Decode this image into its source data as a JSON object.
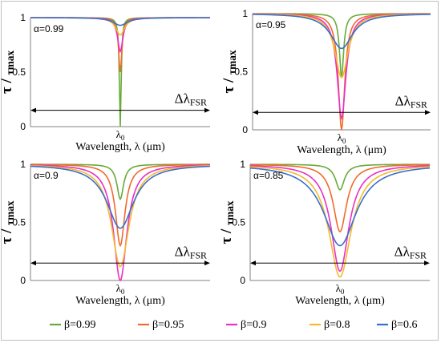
{
  "chart_data": [
    {
      "type": "line",
      "alpha_label": "α=0.99",
      "alpha": 0.99,
      "ylabel": "τ / τmax",
      "xlabel": "Wavelength, λ (μm)",
      "x_tick": "λ0",
      "fsr_label": "ΔλFSR",
      "yticks": [
        "0",
        "0.5",
        "1"
      ],
      "ylim": [
        0,
        1
      ],
      "series": [
        {
          "name": "β=0.99",
          "min": 0.0,
          "width": 0.006
        },
        {
          "name": "β=0.95",
          "min": 0.5,
          "width": 0.011
        },
        {
          "name": "β=0.9",
          "min": 0.69,
          "width": 0.018
        },
        {
          "name": "β=0.8",
          "min": 0.84,
          "width": 0.03
        },
        {
          "name": "β=0.6",
          "min": 0.93,
          "width": 0.05
        }
      ]
    },
    {
      "type": "line",
      "alpha_label": "α=0.95",
      "alpha": 0.95,
      "ylabel": "τ / τmax",
      "xlabel": "Wavelength, λ (μm)",
      "x_tick": "λ0",
      "fsr_label": "ΔλFSR",
      "yticks": [
        "0",
        "0.5",
        "1"
      ],
      "ylim": [
        0,
        1
      ],
      "series": [
        {
          "name": "β=0.99",
          "min": 0.45,
          "width": 0.014
        },
        {
          "name": "β=0.95",
          "min": 0.0,
          "width": 0.022
        },
        {
          "name": "β=0.9",
          "min": 0.1,
          "width": 0.03
        },
        {
          "name": "β=0.8",
          "min": 0.45,
          "width": 0.045
        },
        {
          "name": "β=0.6",
          "min": 0.7,
          "width": 0.075
        }
      ]
    },
    {
      "type": "line",
      "alpha_label": "α=0.9",
      "alpha": 0.9,
      "ylabel": "τ / τmax",
      "xlabel": "Wavelength, λ (μm)",
      "x_tick": "λ0",
      "fsr_label": "ΔλFSR",
      "yticks": [
        "0",
        "0.5",
        "1"
      ],
      "ylim": [
        0,
        1
      ],
      "series": [
        {
          "name": "β=0.99",
          "min": 0.7,
          "width": 0.022
        },
        {
          "name": "β=0.95",
          "min": 0.3,
          "width": 0.032
        },
        {
          "name": "β=0.9",
          "min": 0.0,
          "width": 0.045
        },
        {
          "name": "β=0.8",
          "min": 0.12,
          "width": 0.06
        },
        {
          "name": "β=0.6",
          "min": 0.45,
          "width": 0.09
        }
      ]
    },
    {
      "type": "line",
      "alpha_label": "α=0.85",
      "alpha": 0.85,
      "ylabel": "τ / τmax",
      "xlabel": "Wavelength, λ (μm)",
      "x_tick": "λ0",
      "fsr_label": "ΔλFSR",
      "yticks": [
        "0",
        "0.5",
        "1"
      ],
      "ylim": [
        0,
        1
      ],
      "series": [
        {
          "name": "β=0.99",
          "min": 0.78,
          "width": 0.03
        },
        {
          "name": "β=0.95",
          "min": 0.42,
          "width": 0.045
        },
        {
          "name": "β=0.9",
          "min": 0.08,
          "width": 0.06
        },
        {
          "name": "β=0.8",
          "min": 0.03,
          "width": 0.075
        },
        {
          "name": "β=0.6",
          "min": 0.3,
          "width": 0.11
        }
      ]
    }
  ],
  "legend": [
    {
      "label": "β=0.99",
      "color": "#6aaa3a"
    },
    {
      "label": "β=0.95",
      "color": "#ef6c2d"
    },
    {
      "label": "β=0.9",
      "color": "#e831c6"
    },
    {
      "label": "β=0.8",
      "color": "#f5bb28"
    },
    {
      "label": "β=0.6",
      "color": "#3a6fcc"
    }
  ]
}
